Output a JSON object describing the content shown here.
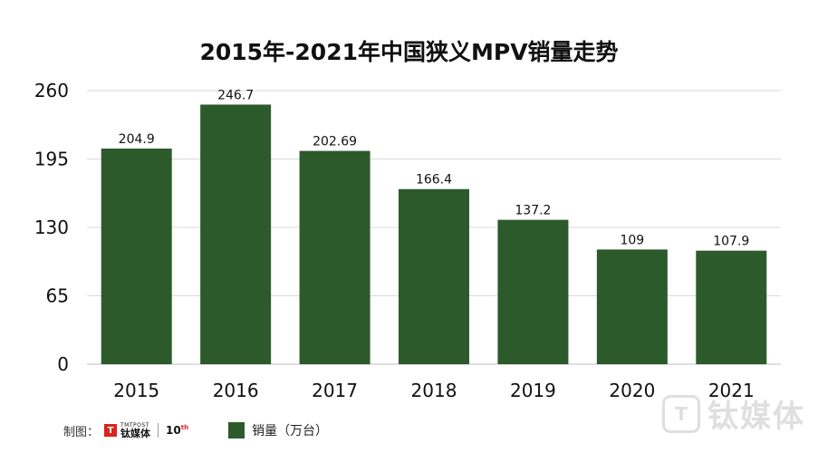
{
  "chart_data": {
    "type": "bar",
    "title": "2015年-2021年中国狭义MPV销量走势",
    "categories": [
      "2015",
      "2016",
      "2017",
      "2018",
      "2019",
      "2020",
      "2021"
    ],
    "series": [
      {
        "name": "销量（万台）",
        "values": [
          204.9,
          246.7,
          202.69,
          166.4,
          137.2,
          109,
          107.9
        ],
        "labels": [
          "204.9",
          "246.7",
          "202.69",
          "166.4",
          "137.2",
          "109",
          "107.9"
        ],
        "color": "#2d5a2b"
      }
    ],
    "yticks": [
      "0",
      "65",
      "130",
      "195",
      "260"
    ],
    "ylim": [
      0,
      260
    ],
    "grid": true,
    "legend": "bottom-left"
  },
  "footer": {
    "credit_label": "制图：",
    "brand_en": "TMTPOST",
    "brand_zh": "钛媒体",
    "anniversary": "10",
    "anniversary_suffix": "th"
  },
  "watermark": {
    "text": "钛媒体",
    "icon": "tmtpost-logo-icon"
  },
  "colors": {
    "bar": "#2d5a2b",
    "grid": "#d9d9d9",
    "axis": "#bfbfbf",
    "brand_red": "#d9261c"
  }
}
